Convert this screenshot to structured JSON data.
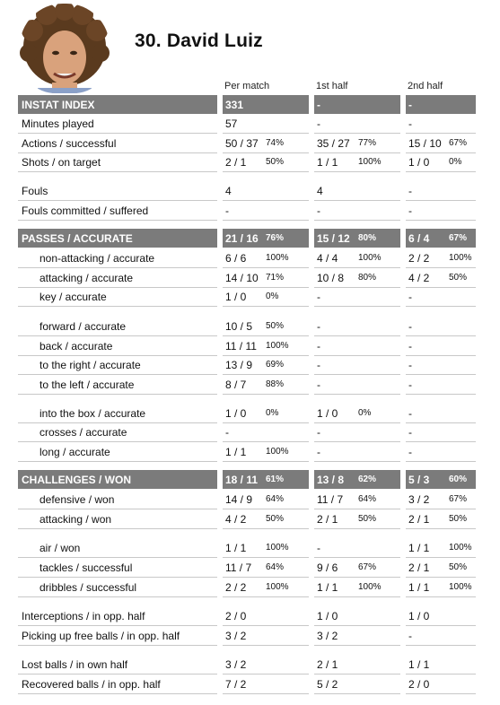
{
  "player": {
    "title": "30.  David Luiz"
  },
  "columns": [
    "Per match",
    "1st half",
    "2nd half"
  ],
  "rows": [
    {
      "label": "INSTAT INDEX",
      "type": "header",
      "cells": [
        {
          "v": "331",
          "p": ""
        },
        {
          "v": "-",
          "p": ""
        },
        {
          "v": "-",
          "p": ""
        }
      ]
    },
    {
      "label": "Minutes played",
      "type": "row",
      "cells": [
        {
          "v": "57",
          "p": ""
        },
        {
          "v": "-",
          "p": ""
        },
        {
          "v": "-",
          "p": ""
        }
      ]
    },
    {
      "label": "Actions / successful",
      "type": "row",
      "cells": [
        {
          "v": "50 / 37",
          "p": "74%"
        },
        {
          "v": "35 / 27",
          "p": "77%"
        },
        {
          "v": "15 / 10",
          "p": "67%"
        }
      ]
    },
    {
      "label": "Shots / on target",
      "type": "row",
      "cells": [
        {
          "v": "2 / 1",
          "p": "50%"
        },
        {
          "v": "1 / 1",
          "p": "100%"
        },
        {
          "v": "1 / 0",
          "p": "0%"
        }
      ]
    },
    {
      "label": "Fouls",
      "type": "row",
      "cells": [
        {
          "v": "4",
          "p": ""
        },
        {
          "v": "4",
          "p": ""
        },
        {
          "v": "-",
          "p": ""
        }
      ]
    },
    {
      "label": "Fouls committed / suffered",
      "type": "row",
      "cells": [
        {
          "v": "-",
          "p": ""
        },
        {
          "v": "-",
          "p": ""
        },
        {
          "v": "-",
          "p": ""
        }
      ]
    },
    {
      "label": "PASSES / ACCURATE",
      "type": "header",
      "cells": [
        {
          "v": "21 / 16",
          "p": "76%"
        },
        {
          "v": "15 / 12",
          "p": "80%"
        },
        {
          "v": "6 / 4",
          "p": "67%"
        }
      ]
    },
    {
      "label": "non-attacking / accurate",
      "type": "sub",
      "cells": [
        {
          "v": "6 / 6",
          "p": "100%"
        },
        {
          "v": "4 / 4",
          "p": "100%"
        },
        {
          "v": "2 / 2",
          "p": "100%"
        }
      ]
    },
    {
      "label": "attacking / accurate",
      "type": "sub",
      "cells": [
        {
          "v": "14 / 10",
          "p": "71%"
        },
        {
          "v": "10 / 8",
          "p": "80%"
        },
        {
          "v": "4 / 2",
          "p": "50%"
        }
      ]
    },
    {
      "label": "key / accurate",
      "type": "sub",
      "cells": [
        {
          "v": "1 / 0",
          "p": "0%"
        },
        {
          "v": "-",
          "p": ""
        },
        {
          "v": "-",
          "p": ""
        }
      ]
    },
    {
      "label": "forward / accurate",
      "type": "sub",
      "cells": [
        {
          "v": "10 / 5",
          "p": "50%"
        },
        {
          "v": "-",
          "p": ""
        },
        {
          "v": "-",
          "p": ""
        }
      ]
    },
    {
      "label": "back / accurate",
      "type": "sub",
      "cells": [
        {
          "v": "11 / 11",
          "p": "100%"
        },
        {
          "v": "-",
          "p": ""
        },
        {
          "v": "-",
          "p": ""
        }
      ]
    },
    {
      "label": "to the right / accurate",
      "type": "sub",
      "cells": [
        {
          "v": "13 / 9",
          "p": "69%"
        },
        {
          "v": "-",
          "p": ""
        },
        {
          "v": "-",
          "p": ""
        }
      ]
    },
    {
      "label": "to the left / accurate",
      "type": "sub",
      "cells": [
        {
          "v": "8 / 7",
          "p": "88%"
        },
        {
          "v": "-",
          "p": ""
        },
        {
          "v": "-",
          "p": ""
        }
      ]
    },
    {
      "label": "into the box / accurate",
      "type": "sub",
      "cells": [
        {
          "v": "1 / 0",
          "p": "0%"
        },
        {
          "v": "1 / 0",
          "p": "0%"
        },
        {
          "v": "-",
          "p": ""
        }
      ]
    },
    {
      "label": "crosses / accurate",
      "type": "sub",
      "cells": [
        {
          "v": "-",
          "p": ""
        },
        {
          "v": "-",
          "p": ""
        },
        {
          "v": "-",
          "p": ""
        }
      ]
    },
    {
      "label": "long / accurate",
      "type": "sub",
      "cells": [
        {
          "v": "1 / 1",
          "p": "100%"
        },
        {
          "v": "-",
          "p": ""
        },
        {
          "v": "-",
          "p": ""
        }
      ]
    },
    {
      "label": "CHALLENGES / WON",
      "type": "header",
      "cells": [
        {
          "v": "18 / 11",
          "p": "61%"
        },
        {
          "v": "13 / 8",
          "p": "62%"
        },
        {
          "v": "5 / 3",
          "p": "60%"
        }
      ]
    },
    {
      "label": "defensive / won",
      "type": "sub",
      "cells": [
        {
          "v": "14 / 9",
          "p": "64%"
        },
        {
          "v": "11 / 7",
          "p": "64%"
        },
        {
          "v": "3 / 2",
          "p": "67%"
        }
      ]
    },
    {
      "label": "attacking / won",
      "type": "sub",
      "cells": [
        {
          "v": "4 / 2",
          "p": "50%"
        },
        {
          "v": "2 / 1",
          "p": "50%"
        },
        {
          "v": "2 / 1",
          "p": "50%"
        }
      ]
    },
    {
      "label": "air / won",
      "type": "sub",
      "cells": [
        {
          "v": "1 / 1",
          "p": "100%"
        },
        {
          "v": "-",
          "p": ""
        },
        {
          "v": "1 / 1",
          "p": "100%"
        }
      ]
    },
    {
      "label": "tackles / successful",
      "type": "sub",
      "cells": [
        {
          "v": "11 / 7",
          "p": "64%"
        },
        {
          "v": "9 / 6",
          "p": "67%"
        },
        {
          "v": "2 / 1",
          "p": "50%"
        }
      ]
    },
    {
      "label": "dribbles / successful",
      "type": "sub",
      "cells": [
        {
          "v": "2 / 2",
          "p": "100%"
        },
        {
          "v": "1 / 1",
          "p": "100%"
        },
        {
          "v": "1 / 1",
          "p": "100%"
        }
      ]
    },
    {
      "label": "Interceptions / in opp. half",
      "type": "row",
      "cells": [
        {
          "v": "2 / 0",
          "p": ""
        },
        {
          "v": "1 / 0",
          "p": ""
        },
        {
          "v": "1 / 0",
          "p": ""
        }
      ]
    },
    {
      "label": "Picking up free balls / in opp. half",
      "type": "row",
      "cells": [
        {
          "v": "3 / 2",
          "p": ""
        },
        {
          "v": "3 / 2",
          "p": ""
        },
        {
          "v": "-",
          "p": ""
        }
      ]
    },
    {
      "label": "Lost balls / in own half",
      "type": "row",
      "cells": [
        {
          "v": "3 / 2",
          "p": ""
        },
        {
          "v": "2 / 1",
          "p": ""
        },
        {
          "v": "1 / 1",
          "p": ""
        }
      ]
    },
    {
      "label": "Recovered balls / in opp. half",
      "type": "row",
      "cells": [
        {
          "v": "7 / 2",
          "p": ""
        },
        {
          "v": "5 / 2",
          "p": ""
        },
        {
          "v": "2 / 0",
          "p": ""
        }
      ]
    }
  ]
}
